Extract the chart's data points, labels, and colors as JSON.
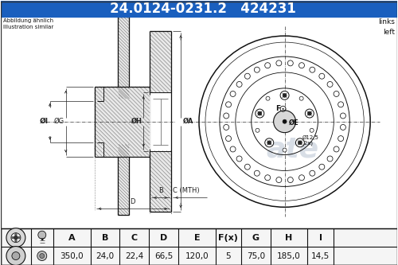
{
  "title_part_number": "24.0124-0231.2",
  "title_ref_number": "424231",
  "title_bg_color": "#1a5fbe",
  "title_text_color": "#ffffff",
  "bg_color": "#ffffff",
  "text_color": "#000000",
  "note_left": "Abbildung ähnlich\nIllustration similar",
  "note_right": "links\nleft",
  "table_headers": [
    "A",
    "B",
    "C",
    "D",
    "E",
    "F(x)",
    "G",
    "H",
    "I"
  ],
  "table_values": [
    "350,0",
    "24,0",
    "22,4",
    "66,5",
    "120,0",
    "5",
    "75,0",
    "185,0",
    "14,5"
  ],
  "line_color": "#111111",
  "hatch_color": "#555555",
  "dim_color": "#222222",
  "watermark_color": "#c8d0dc"
}
